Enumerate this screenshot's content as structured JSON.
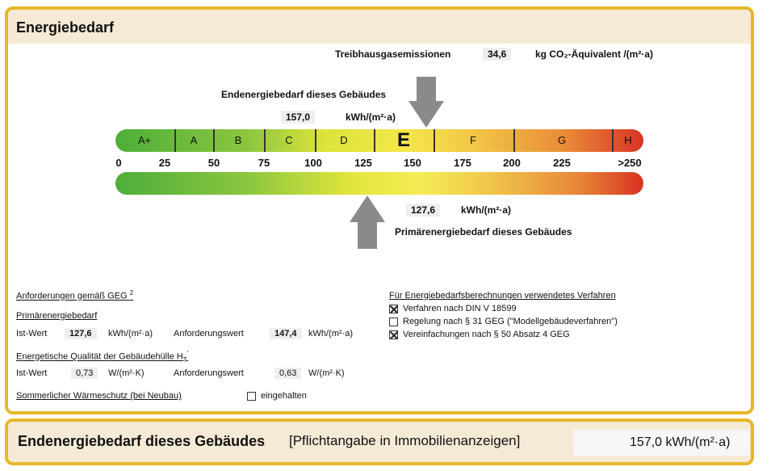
{
  "header": {
    "title": "Energiebedarf"
  },
  "emissions": {
    "label": "Treibhausgasemissionen",
    "value": "34,6",
    "unit": "kg CO₂-Äquivalent /(m²·a)"
  },
  "end_energy": {
    "label": "Endenergiebedarf dieses Gebäudes",
    "value": "157,0",
    "unit": "kWh/(m²·a)",
    "numeric": 157.0
  },
  "primary_energy": {
    "label": "Primärenergiebedarf dieses Gebäudes",
    "value": "127,6",
    "unit": "kWh/(m²·a)",
    "numeric": 127.6
  },
  "scale": {
    "classes": [
      "A+",
      "A",
      "B",
      "C",
      "D",
      "E",
      "F",
      "G",
      "H"
    ],
    "current_class": "E",
    "ticks": [
      "0",
      "25",
      "50",
      "75",
      "100",
      "125",
      "150",
      "175",
      "200",
      "225",
      ">250"
    ],
    "colors": {
      "green": "#4cae3a",
      "yellow": "#f5e64a",
      "orange": "#e98c37",
      "red": "#d93324"
    }
  },
  "requirements": {
    "title": "Anforderungen gemäß GEG",
    "footnote": "2",
    "primary": {
      "title": "Primärenergiebedarf",
      "ist_label": "Ist-Wert",
      "ist_value": "127,6",
      "ist_unit": "kWh/(m²·a)",
      "req_label": "Anforderungswert",
      "req_value": "147,4",
      "req_unit": "kWh/(m²·a)"
    },
    "envelope": {
      "title": "Energetische Qualität der Gebäudehülle H",
      "title_sub": "T",
      "title_sup": "'",
      "ist_label": "Ist-Wert",
      "ist_value": "0,73",
      "ist_unit": "W/(m²·K)",
      "req_label": "Anforderungswert",
      "req_value": "0,63",
      "req_unit": "W/(m²·K)"
    },
    "summer": {
      "title": "Sommerlicher Wärmeschutz (bei Neubau)",
      "check_label": "eingehalten",
      "checked": false
    }
  },
  "methods": {
    "title": "Für Energiebedarfsberechnungen verwendetes Verfahren",
    "items": [
      {
        "label": "Verfahren nach DIN V 18599",
        "checked": true
      },
      {
        "label": "Regelung nach § 31 GEG (\"Modellgebäudeverfahren\")",
        "checked": false
      },
      {
        "label": "Vereinfachungen nach § 50 Absatz 4 GEG",
        "checked": true
      }
    ]
  },
  "footer": {
    "title": "Endenergiebedarf dieses Gebäudes",
    "note": "[Pflichtangabe in Immobilienanzeigen]",
    "value": "157,0 kWh/(m²·a)"
  }
}
